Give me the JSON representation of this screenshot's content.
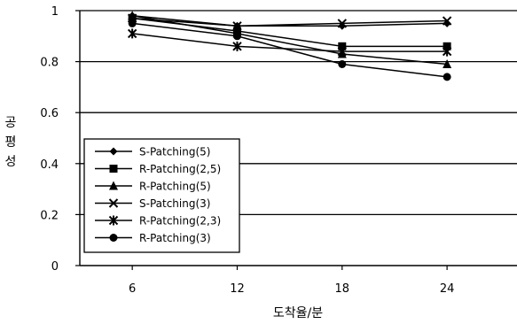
{
  "chart_data": {
    "type": "line",
    "title": "",
    "xlabel": "도착율/분",
    "ylabel": "공평성",
    "x": [
      6,
      12,
      18,
      24
    ],
    "x_tick_labels": [
      "6",
      "12",
      "18",
      "24"
    ],
    "y_tick_labels": [
      "0",
      "0.2",
      "0.4",
      "0.6",
      "0.8",
      "1"
    ],
    "ylim": [
      0,
      1
    ],
    "grid": "horizontal",
    "legend_position": "bottom-left inside plot",
    "series": [
      {
        "name": "S-Patching(5)",
        "marker": "diamond",
        "values": [
          0.98,
          0.94,
          0.94,
          0.95
        ]
      },
      {
        "name": "R-Patching(2,5)",
        "marker": "square",
        "values": [
          0.97,
          0.92,
          0.86,
          0.86
        ]
      },
      {
        "name": "R-Patching(5)",
        "marker": "triangle",
        "values": [
          0.98,
          0.91,
          0.83,
          0.79
        ]
      },
      {
        "name": "S-Patching(3)",
        "marker": "x",
        "values": [
          0.97,
          0.94,
          0.95,
          0.96
        ]
      },
      {
        "name": "R-Patching(2,3)",
        "marker": "asterisk",
        "values": [
          0.91,
          0.86,
          0.84,
          0.84
        ]
      },
      {
        "name": "R-Patching(3)",
        "marker": "circle",
        "values": [
          0.95,
          0.9,
          0.79,
          0.74
        ]
      }
    ]
  }
}
